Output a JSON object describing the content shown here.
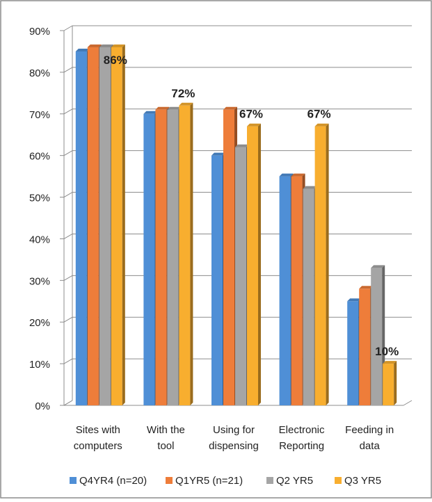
{
  "chart_data": {
    "type": "bar",
    "style": "3d-clustered-column",
    "categories": [
      [
        "Sites with",
        "computers"
      ],
      [
        "With the",
        "tool"
      ],
      [
        "Using for",
        "dispensing"
      ],
      [
        "Electronic",
        "Reporting"
      ],
      [
        "Feeding in",
        "data"
      ]
    ],
    "series": [
      {
        "name": "Q4YR4 (n=20)",
        "color": "#4F8FD6",
        "values": [
          85,
          70,
          60,
          55,
          25
        ]
      },
      {
        "name": "Q1YR5 (n=21)",
        "color": "#EE7D3A",
        "values": [
          86,
          71,
          71,
          55,
          28
        ]
      },
      {
        "name": "Q2 YR5",
        "color": "#A5A5A5",
        "values": [
          86,
          71,
          62,
          52,
          33
        ]
      },
      {
        "name": "Q3 YR5",
        "color": "#F8AE2F",
        "values": [
          86,
          72,
          67,
          67,
          10
        ]
      }
    ],
    "data_labels": [
      "86%",
      "72%",
      "67%",
      "67%",
      "10%"
    ],
    "y_ticks": [
      "0%",
      "10%",
      "20%",
      "30%",
      "40%",
      "50%",
      "60%",
      "70%",
      "80%",
      "90%"
    ],
    "ylim": [
      0,
      90
    ],
    "grid": true,
    "legend_position": "bottom"
  }
}
